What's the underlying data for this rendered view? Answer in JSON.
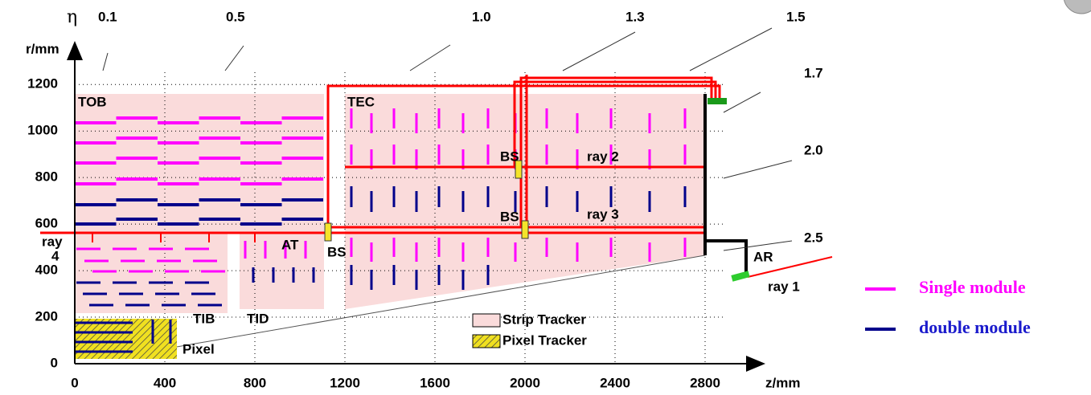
{
  "axes": {
    "y_label": "r/mm",
    "x_label": "z/mm",
    "x_ticks": [
      "0",
      "400",
      "800",
      "1200",
      "1600",
      "2000",
      "2400",
      "2800"
    ],
    "y_ticks": [
      "0",
      "200",
      "400",
      "600",
      "800",
      "1000",
      "1200"
    ]
  },
  "eta": {
    "symbol": "η",
    "values": [
      "0.1",
      "0.5",
      "1.0",
      "1.3",
      "1.5",
      "1.7",
      "2.0",
      "2.5"
    ]
  },
  "regions": {
    "tob": "TOB",
    "tec": "TEC",
    "tib": "TIB",
    "tid": "TID",
    "pixel": "Pixel",
    "at": "AT"
  },
  "beam_splitters": [
    "BS",
    "BS",
    "BS"
  ],
  "rays": {
    "ray1": "ray 1",
    "ray2": "ray 2",
    "ray3": "ray 3",
    "ray4_a": "ray",
    "ray4_b": "4"
  },
  "alignment_ring": "AR",
  "inner_legend": [
    "Strip Tracker",
    "Pixel Tracker"
  ],
  "legend": [
    "Single module",
    "double module"
  ]
}
